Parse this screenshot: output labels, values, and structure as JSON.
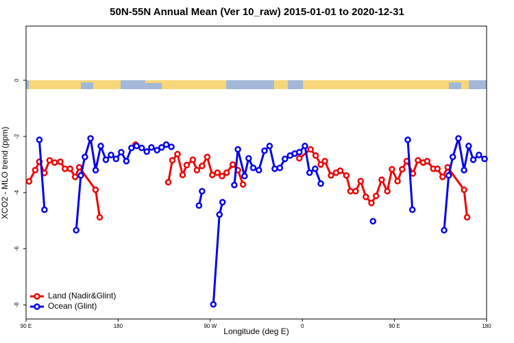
{
  "chart_data": {
    "type": "line",
    "title": "50N-55N Annual Mean (Ver 10_raw)   2015-01-01 to 2020-12-31",
    "x_label": "Longitude (deg E)",
    "y_label": "XCO2 - MLO trend (ppm)",
    "xlim": [
      90,
      540
    ],
    "ylim": [
      -8.5,
      1.93
    ],
    "xticks": [
      {
        "value": 90,
        "label": "90 E"
      },
      180,
      {
        "value": 270,
        "label": "90 W"
      },
      {
        "value": 360,
        "label": "0"
      },
      {
        "value": 450,
        "label": "90 E"
      },
      {
        "value": 540,
        "label": "180"
      }
    ],
    "yticks": [
      0,
      -2,
      -4,
      -6,
      -8
    ],
    "legend": "lower left",
    "series": [
      {
        "name": "Land (Nadir&Glint)",
        "color": "#ee0000",
        "x": [
          93,
          99,
          103,
          108,
          113,
          118,
          123.5,
          128,
          133,
          138,
          142,
          158,
          162,
          null,
          197,
          null,
          229,
          233,
          238,
          243,
          247,
          253,
          257,
          262,
          267,
          272,
          277,
          281.5,
          286,
          292,
          297,
          302,
          null,
          357,
          368,
          373,
          378,
          382,
          388,
          393,
          397,
          403,
          407,
          412,
          417,
          422,
          427.5,
          432,
          437.5,
          443,
          447.5,
          453,
          457.5,
          462,
          468,
          473,
          478,
          482,
          488,
          492,
          497,
          502,
          518,
          521
        ],
        "values": [
          -3.6,
          -3.2,
          -2.9,
          -3.3,
          -2.85,
          -2.93,
          -2.9,
          -3.15,
          -3.15,
          -3.44,
          -3.1,
          -3.9,
          -4.88,
          null,
          -2.29,
          null,
          -3.63,
          -2.85,
          -2.63,
          -3.37,
          -3.02,
          -2.83,
          -3.2,
          -3.05,
          -2.73,
          -3.37,
          -3.29,
          -3.41,
          -3.29,
          -3.0,
          -3.2,
          -3.71,
          null,
          -2.78,
          -2.46,
          -2.68,
          -3.0,
          -2.88,
          -3.39,
          -3.29,
          -3.22,
          -3.39,
          -3.95,
          -3.95,
          -3.59,
          -4.15,
          -4.37,
          -4.12,
          -3.54,
          -3.95,
          -3.17,
          -3.59,
          -3.17,
          -2.88,
          -3.32,
          -2.85,
          -2.93,
          -2.88,
          -3.15,
          -3.15,
          -3.44,
          -3.1,
          -3.9,
          -4.88
        ]
      },
      {
        "name": "Ocean (Glint)",
        "color": "#0000ee",
        "x": [
          103,
          108,
          null,
          139,
          143.5,
          147.5,
          153,
          158,
          163,
          168,
          173,
          178,
          183,
          188,
          193,
          198,
          203,
          208,
          212.5,
          218,
          222.5,
          227,
          232,
          null,
          259,
          262,
          null,
          273,
          279,
          282,
          null,
          293.5,
          297,
          303.5,
          307.5,
          312,
          317.5,
          323,
          328,
          333,
          338,
          343,
          348,
          352.5,
          357,
          362.5,
          367,
          372.5,
          378,
          null,
          429,
          null,
          463,
          467.5,
          null,
          498.5,
          503,
          507,
          512.5,
          518,
          522.5,
          527,
          532.5,
          538
        ],
        "values": [
          -2.12,
          -4.61,
          null,
          -5.34,
          -3.39,
          -2.73,
          -2.07,
          -3.2,
          -2.34,
          -2.83,
          -2.66,
          -2.8,
          -2.56,
          -2.88,
          -2.41,
          -2.34,
          -2.41,
          -2.54,
          -2.39,
          -2.49,
          -2.39,
          -2.29,
          -2.37,
          null,
          -4.46,
          -3.95,
          null,
          -7.98,
          -4.78,
          -4.34,
          null,
          -3.73,
          -2.46,
          -3.41,
          -2.78,
          -3.12,
          -3.2,
          -2.51,
          -2.34,
          -3.15,
          -3.12,
          -2.8,
          -2.68,
          -2.61,
          -2.56,
          -2.34,
          -3.29,
          -3.15,
          -3.68,
          null,
          -5.02,
          null,
          -2.12,
          -4.61,
          null,
          -5.34,
          -3.39,
          -2.73,
          -2.07,
          -3.2,
          -2.34,
          -2.83,
          -2.66,
          -2.8
        ]
      }
    ]
  }
}
